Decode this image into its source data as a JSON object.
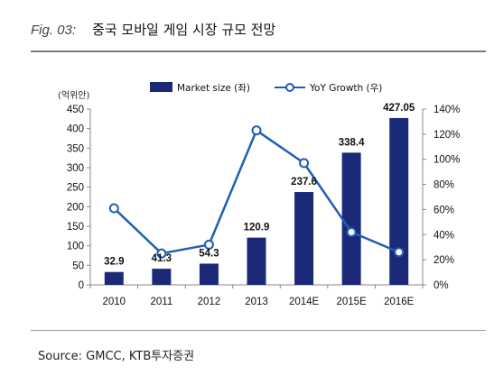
{
  "header": {
    "fig_label": "Fig. 03:",
    "title": "중국 모바일 게임 시장 규모 전망"
  },
  "source": "Source: GMCC, KTB투자증권",
  "colors": {
    "bar": "#1b2a78",
    "line": "#1f5fb3",
    "marker_fill": "#ffffff"
  },
  "chart_data": {
    "type": "bar",
    "categories": [
      "2010",
      "2011",
      "2012",
      "2013",
      "2014E",
      "2015E",
      "2016E"
    ],
    "y_unit_label": "(억위안)",
    "series": [
      {
        "name": "Market size (좌)",
        "type": "bar",
        "axis": "left",
        "values": [
          32.9,
          41.3,
          54.3,
          120.9,
          237.6,
          338.4,
          427.05
        ],
        "labels": [
          "32.9",
          "41.3",
          "54.3",
          "120.9",
          "237.6",
          "338.4",
          "427.05"
        ]
      },
      {
        "name": "YoY Growth (우)",
        "type": "line",
        "axis": "right",
        "values": [
          61,
          25,
          32,
          123,
          97,
          42,
          26
        ]
      }
    ],
    "ylim_left": [
      0,
      450
    ],
    "yticks_left": [
      "0",
      "50",
      "100",
      "150",
      "200",
      "250",
      "300",
      "350",
      "400",
      "450"
    ],
    "ylim_right": [
      0,
      140
    ],
    "yticks_right": [
      "0%",
      "20%",
      "40%",
      "60%",
      "80%",
      "100%",
      "120%",
      "140%"
    ],
    "legend_position": "top-center",
    "grid": false
  }
}
